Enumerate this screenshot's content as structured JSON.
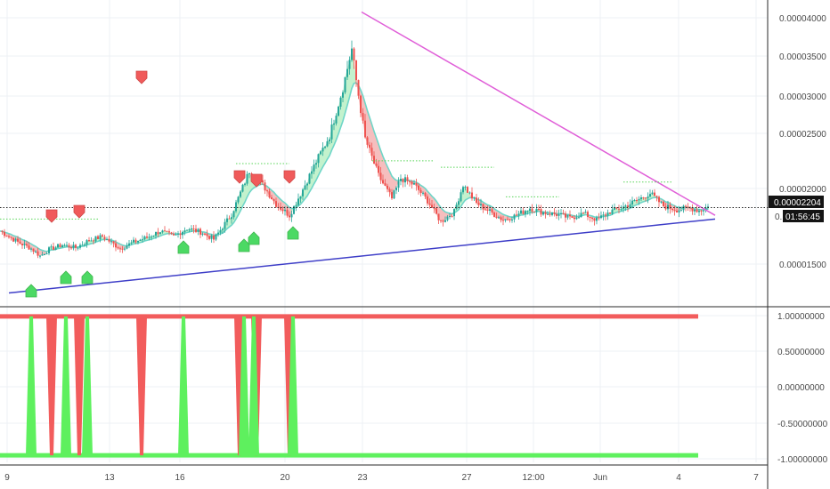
{
  "colors": {
    "up": "#26a69a",
    "down": "#ef5350",
    "bull_fill": "#b9f0c4",
    "bear_fill": "#f4b3b3",
    "trend_upper": "#e05fd8",
    "trend_lower": "#3f3fc8",
    "signal_up": "#4cd964",
    "signal_down": "#f05a5a",
    "osc_up": "#5ef05e",
    "osc_down": "#f25c5c",
    "grid": "#eef1f4",
    "axis_text": "#4a4a4a",
    "price_label_bg": "#141414",
    "price_label_text": "#ffffff"
  },
  "chart_data": [
    {
      "type": "candlestick",
      "x_ticks": [
        "9",
        "13",
        "16",
        "20",
        "23",
        "27",
        "12:00",
        "Jun",
        "4",
        "7"
      ],
      "y_ticks": [
        "0.00001500",
        "0.00002000",
        "0.00002500",
        "0.00003000",
        "0.00003500",
        "0.00004000"
      ],
      "ylim": [
        1.15e-05,
        4.45e-05
      ],
      "price_label": "0.00002204",
      "countdown_label": "01:56:45",
      "countdown_prefix": "0.",
      "close_path": [
        [
          0,
          1.95e-05
        ],
        [
          8,
          1.83e-05
        ],
        [
          14,
          1.76e-05
        ],
        [
          18,
          1.68e-05
        ],
        [
          22,
          1.75e-05
        ],
        [
          28,
          1.8e-05
        ],
        [
          34,
          1.77e-05
        ],
        [
          40,
          1.85e-05
        ],
        [
          46,
          1.89e-05
        ],
        [
          54,
          1.76e-05
        ],
        [
          60,
          1.83e-05
        ],
        [
          66,
          1.88e-05
        ],
        [
          72,
          1.95e-05
        ],
        [
          78,
          1.89e-05
        ],
        [
          84,
          1.98e-05
        ],
        [
          90,
          1.94e-05
        ],
        [
          96,
          1.86e-05
        ],
        [
          104,
          2.13e-05
        ],
        [
          112,
          2.6e-05
        ],
        [
          118,
          2.45e-05
        ],
        [
          124,
          2.24e-05
        ],
        [
          130,
          2.12e-05
        ],
        [
          136,
          2.4e-05
        ],
        [
          142,
          2.7e-05
        ],
        [
          148,
          2.98e-05
        ],
        [
          154,
          3.5e-05
        ],
        [
          158,
          3.92e-05
        ],
        [
          160,
          3.58e-05
        ],
        [
          164,
          2.95e-05
        ],
        [
          170,
          2.55e-05
        ],
        [
          176,
          2.3e-05
        ],
        [
          180,
          2.52e-05
        ],
        [
          186,
          2.45e-05
        ],
        [
          192,
          2.28e-05
        ],
        [
          198,
          2.05e-05
        ],
        [
          204,
          2.16e-05
        ],
        [
          208,
          2.45e-05
        ],
        [
          214,
          2.25e-05
        ],
        [
          220,
          2.16e-05
        ],
        [
          226,
          2.07e-05
        ],
        [
          232,
          2.12e-05
        ],
        [
          238,
          2.2e-05
        ],
        [
          244,
          2.15e-05
        ],
        [
          250,
          2.13e-05
        ],
        [
          256,
          2.09e-05
        ],
        [
          262,
          2.14e-05
        ],
        [
          268,
          2.07e-05
        ],
        [
          274,
          2.16e-05
        ],
        [
          280,
          2.21e-05
        ],
        [
          286,
          2.28e-05
        ],
        [
          292,
          2.36e-05
        ],
        [
          298,
          2.22e-05
        ],
        [
          304,
          2.18e-05
        ],
        [
          310,
          2.2e-05
        ],
        [
          314,
          2.17e-05
        ],
        [
          318,
          2.21e-05
        ]
      ],
      "trend_upper": [
        [
          160,
          4.32e-05
        ],
        [
          318,
          2.12e-05
        ]
      ],
      "trend_lower": [
        [
          0,
          1.28e-05
        ],
        [
          318,
          2.08e-05
        ]
      ],
      "buy_signals": [
        35,
        74,
        98,
        206,
        274,
        285,
        329
      ],
      "sell_signals": [
        58,
        89,
        159,
        269,
        288,
        325
      ]
    },
    {
      "type": "step",
      "y_ticks": [
        "1.00000000",
        "0.50000000",
        "0.00000000",
        "-0.50000000",
        "-1.00000000"
      ],
      "ylim": [
        -1.1,
        1.1
      ],
      "red_spikes": [
        58,
        89,
        159,
        269,
        288,
        325
      ],
      "green_spikes": [
        35,
        74,
        98,
        206,
        274,
        285,
        329
      ]
    }
  ]
}
